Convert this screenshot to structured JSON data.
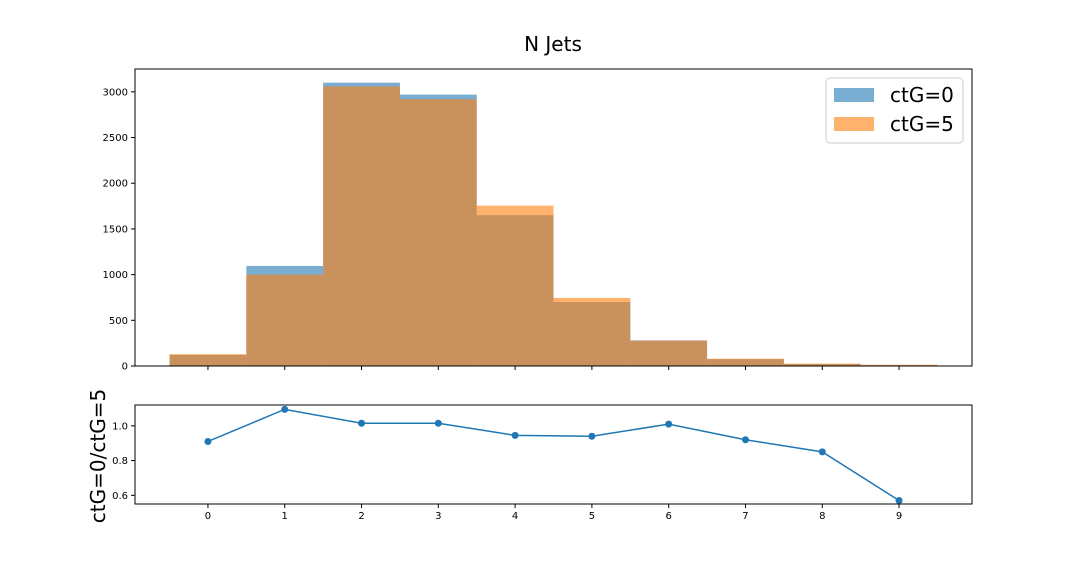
{
  "chart_data": [
    {
      "type": "bar",
      "title": "N Jets",
      "xlabel": "",
      "ylabel": "",
      "xlim": [
        -0.95,
        9.95
      ],
      "ylim": [
        0,
        3250
      ],
      "yticks": [
        0,
        500,
        1000,
        1500,
        2000,
        2500,
        3000
      ],
      "xticks": [
        0,
        1,
        2,
        3,
        4,
        5,
        6,
        7,
        8,
        9
      ],
      "bin_edges": [
        -0.5,
        0.5,
        1.5,
        2.5,
        3.5,
        4.5,
        5.5,
        6.5,
        7.5,
        8.5,
        9.5
      ],
      "legend_position": "top-right",
      "grid": false,
      "series": [
        {
          "name": "ctG=0",
          "color": "#1f77b4",
          "alpha": 0.6,
          "values": [
            120,
            1095,
            3100,
            2970,
            1650,
            700,
            280,
            75,
            22,
            8
          ]
        },
        {
          "name": "ctG=5",
          "color": "#ff7f0e",
          "alpha": 0.6,
          "values": [
            130,
            1000,
            3060,
            2920,
            1755,
            745,
            278,
            80,
            26,
            14
          ]
        }
      ]
    },
    {
      "type": "line",
      "title": "",
      "xlabel": "",
      "ylabel": "ctG=0/ctG=5",
      "xlim": [
        -0.95,
        9.95
      ],
      "ylim": [
        0.55,
        1.12
      ],
      "yticks": [
        0.6,
        0.8,
        1.0
      ],
      "ytick_labels": [
        "0.6",
        "0.8",
        "1.0"
      ],
      "xticks": [
        0,
        1,
        2,
        3,
        4,
        5,
        6,
        7,
        8,
        9
      ],
      "grid": false,
      "color": "#1f77b4",
      "x": [
        0,
        1,
        2,
        3,
        4,
        5,
        6,
        7,
        8,
        9
      ],
      "y": [
        0.91,
        1.095,
        1.015,
        1.015,
        0.945,
        0.94,
        1.01,
        0.92,
        0.85,
        0.57
      ]
    }
  ]
}
